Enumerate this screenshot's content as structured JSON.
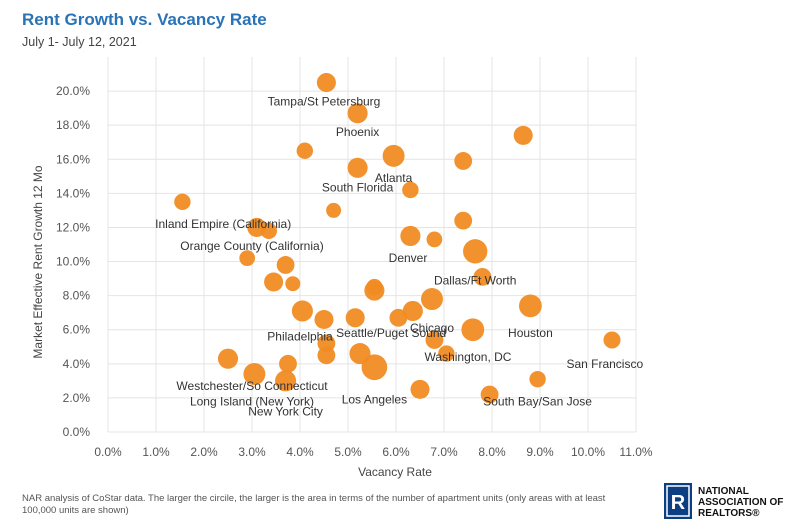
{
  "header": {
    "title": "Rent Growth vs. Vacancy Rate",
    "subtitle": "July 1- July 12, 2021"
  },
  "footer": {
    "note_line1": "NAR analysis of CoStar data. The larger the circile, the larger is the area in terms of the number of apartment units (only areas with at least",
    "note_line2": "100,000 units are shown)",
    "logo_line1": "NATIONAL",
    "logo_line2": "ASSOCIATION OF",
    "logo_line3": "REALTORS®"
  },
  "chart_data": {
    "type": "scatter",
    "xlabel": "Vacancy Rate",
    "ylabel": "Market Effective Rent Growth 12 Mo",
    "xlim": [
      0,
      11
    ],
    "ylim": [
      0,
      22
    ],
    "x_ticks": [
      "0.0%",
      "1.0%",
      "2.0%",
      "3.0%",
      "4.0%",
      "5.0%",
      "6.0%",
      "7.0%",
      "8.0%",
      "9.0%",
      "10.0%",
      "11.0%"
    ],
    "y_ticks": [
      "0.0%",
      "2.0%",
      "4.0%",
      "6.0%",
      "8.0%",
      "10.0%",
      "12.0%",
      "14.0%",
      "16.0%",
      "18.0%",
      "20.0%"
    ],
    "grid": true,
    "color": "#f08c23",
    "points": [
      {
        "x": 4.55,
        "y": 20.5,
        "size": 2,
        "label": "Tampa/St Petersburg"
      },
      {
        "x": 5.2,
        "y": 18.7,
        "size": 2.5,
        "label": "Phoenix"
      },
      {
        "x": 8.65,
        "y": 17.4,
        "size": 2
      },
      {
        "x": 4.1,
        "y": 16.5,
        "size": 1
      },
      {
        "x": 5.95,
        "y": 16.2,
        "size": 3.5,
        "label": "Atlanta"
      },
      {
        "x": 7.4,
        "y": 15.9,
        "size": 1.5
      },
      {
        "x": 5.2,
        "y": 15.5,
        "size": 2.5,
        "label": "South Florida"
      },
      {
        "x": 6.3,
        "y": 14.2,
        "size": 1
      },
      {
        "x": 1.55,
        "y": 13.5,
        "size": 1
      },
      {
        "x": 4.7,
        "y": 13.0,
        "size": 0.6
      },
      {
        "x": 7.4,
        "y": 12.4,
        "size": 1.5
      },
      {
        "x": 3.1,
        "y": 12.0,
        "size": 2,
        "label": "Inland Empire (California)"
      },
      {
        "x": 3.35,
        "y": 11.8,
        "size": 1
      },
      {
        "x": 6.3,
        "y": 11.5,
        "size": 2.5,
        "label": "Denver"
      },
      {
        "x": 6.8,
        "y": 11.3,
        "size": 0.8
      },
      {
        "x": 7.65,
        "y": 10.6,
        "size": 5,
        "label": "Dallas/Ft Worth"
      },
      {
        "x": 2.9,
        "y": 10.2,
        "size": 0.8,
        "label": "Orange County (California)"
      },
      {
        "x": 3.7,
        "y": 9.8,
        "size": 1.5
      },
      {
        "x": 7.8,
        "y": 9.1,
        "size": 1.5
      },
      {
        "x": 3.45,
        "y": 8.8,
        "size": 2
      },
      {
        "x": 3.85,
        "y": 8.7,
        "size": 0.6
      },
      {
        "x": 5.55,
        "y": 8.5,
        "size": 1
      },
      {
        "x": 5.55,
        "y": 8.3,
        "size": 2.5
      },
      {
        "x": 6.75,
        "y": 7.8,
        "size": 3.5
      },
      {
        "x": 8.8,
        "y": 7.4,
        "size": 4,
        "label": "Houston"
      },
      {
        "x": 6.35,
        "y": 7.1,
        "size": 2.5,
        "label": "Chicago"
      },
      {
        "x": 4.05,
        "y": 7.1,
        "size": 3,
        "label": "Philadelphia"
      },
      {
        "x": 5.15,
        "y": 6.7,
        "size": 2,
        "label": "Seattle/Puget Sound"
      },
      {
        "x": 6.05,
        "y": 6.7,
        "size": 1.5
      },
      {
        "x": 4.5,
        "y": 6.6,
        "size": 2
      },
      {
        "x": 7.6,
        "y": 6.0,
        "size": 4,
        "label": "Washington, DC"
      },
      {
        "x": 6.8,
        "y": 5.4,
        "size": 1.5
      },
      {
        "x": 10.5,
        "y": 5.4,
        "size": 1.2,
        "label": "San Francisco"
      },
      {
        "x": 4.55,
        "y": 5.2,
        "size": 1.5
      },
      {
        "x": 7.05,
        "y": 4.6,
        "size": 1
      },
      {
        "x": 5.25,
        "y": 4.6,
        "size": 3
      },
      {
        "x": 4.55,
        "y": 4.5,
        "size": 1.5
      },
      {
        "x": 2.5,
        "y": 4.3,
        "size": 2.5
      },
      {
        "x": 3.75,
        "y": 4.0,
        "size": 1.5
      },
      {
        "x": 5.55,
        "y": 3.8,
        "size": 6,
        "label": "Los Angeles"
      },
      {
        "x": 3.05,
        "y": 3.4,
        "size": 3.5,
        "label": "Westchester/So Connecticut"
      },
      {
        "x": 3.7,
        "y": 3.0,
        "size": 3,
        "label": "Long Island (New York)"
      },
      {
        "x": 8.95,
        "y": 3.1,
        "size": 1
      },
      {
        "x": 6.5,
        "y": 2.5,
        "size": 2
      },
      {
        "x": 7.95,
        "y": 2.2,
        "size": 1.5,
        "label": "South Bay/San Jose"
      }
    ],
    "labels": [
      {
        "text": "Tampa/St Petersburg",
        "x": 4.5,
        "y": 19.4,
        "anchor": "middle"
      },
      {
        "text": "Phoenix",
        "x": 5.2,
        "y": 17.6,
        "anchor": "middle"
      },
      {
        "text": "Atlanta",
        "x": 5.95,
        "y": 14.9,
        "anchor": "middle"
      },
      {
        "text": "South Florida",
        "x": 5.2,
        "y": 14.35,
        "anchor": "middle"
      },
      {
        "text": "Inland Empire (California)",
        "x": 2.4,
        "y": 12.2,
        "anchor": "middle"
      },
      {
        "text": "Orange County (California)",
        "x": 3.0,
        "y": 10.9,
        "anchor": "middle"
      },
      {
        "text": "Denver",
        "x": 6.25,
        "y": 10.2,
        "anchor": "middle"
      },
      {
        "text": "Dallas/Ft Worth",
        "x": 7.65,
        "y": 8.9,
        "anchor": "middle"
      },
      {
        "text": "Chicago",
        "x": 6.75,
        "y": 6.1,
        "anchor": "middle"
      },
      {
        "text": "Houston",
        "x": 8.8,
        "y": 5.8,
        "anchor": "middle"
      },
      {
        "text": "Philadelphia",
        "x": 4.0,
        "y": 5.6,
        "anchor": "middle"
      },
      {
        "text": "Seattle/Puget Sound",
        "x": 5.9,
        "y": 5.8,
        "anchor": "middle"
      },
      {
        "text": "Washington, DC",
        "x": 7.5,
        "y": 4.4,
        "anchor": "middle"
      },
      {
        "text": "San Francisco",
        "x": 10.35,
        "y": 4.0,
        "anchor": "middle"
      },
      {
        "text": "Westchester/So Connecticut",
        "x": 3.0,
        "y": 2.7,
        "anchor": "middle"
      },
      {
        "text": "Long Island (New York)",
        "x": 3.0,
        "y": 1.8,
        "anchor": "middle"
      },
      {
        "text": "New York City",
        "x": 3.7,
        "y": 1.2,
        "anchor": "middle"
      },
      {
        "text": "Los Angeles",
        "x": 5.55,
        "y": 1.9,
        "anchor": "middle"
      },
      {
        "text": "South Bay/San Jose",
        "x": 8.95,
        "y": 1.8,
        "anchor": "middle"
      }
    ]
  }
}
